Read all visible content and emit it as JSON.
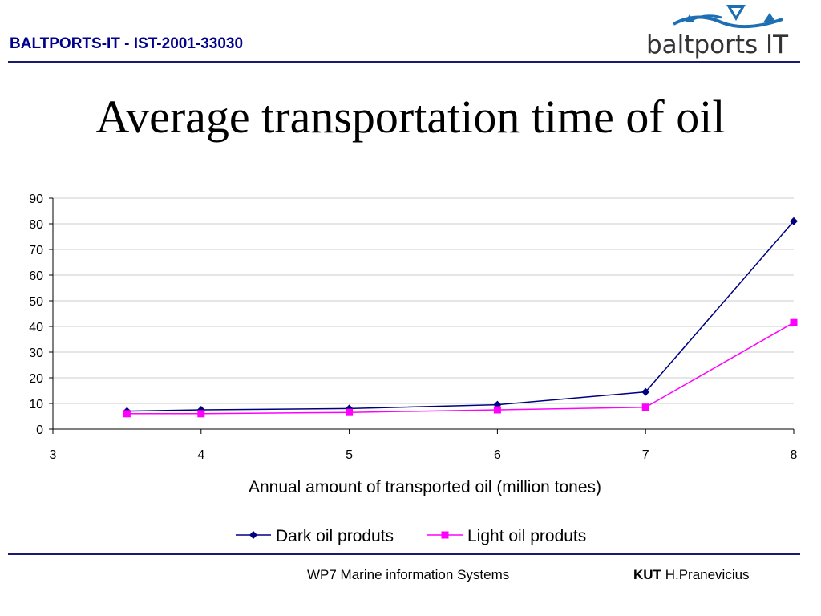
{
  "header": {
    "project_title": "BALTPORTS-IT - IST-2001-33030"
  },
  "logo": {
    "text": "baltports IT"
  },
  "slide": {
    "title": "Average transportation time of oil"
  },
  "chart_data": {
    "type": "line",
    "title": "",
    "xlabel": "Annual amount of transported oil (million tones)",
    "ylabel": "",
    "xlim": [
      3,
      8
    ],
    "ylim": [
      0,
      90
    ],
    "xticks": [
      3,
      4,
      5,
      6,
      7,
      8
    ],
    "yticks": [
      0,
      10,
      20,
      30,
      40,
      50,
      60,
      70,
      80,
      90
    ],
    "grid": "horizontal",
    "legend_position": "bottom",
    "series": [
      {
        "name": "Dark oil produts",
        "color": "#000080",
        "marker": "diamond",
        "points": [
          [
            3.5,
            7
          ],
          [
            4,
            7.5
          ],
          [
            5,
            8
          ],
          [
            6,
            9.5
          ],
          [
            7,
            14.5
          ],
          [
            8,
            81
          ]
        ]
      },
      {
        "name": "Light oil produts",
        "color": "#ff00ff",
        "marker": "square",
        "points": [
          [
            3.5,
            6
          ],
          [
            4,
            6
          ],
          [
            5,
            6.5
          ],
          [
            6,
            7.5
          ],
          [
            7,
            8.5
          ],
          [
            8,
            41.5
          ]
        ]
      }
    ]
  },
  "footer": {
    "center": "WP7 Marine information Systems",
    "org": "KUT",
    "author": "H.Pranevicius"
  }
}
